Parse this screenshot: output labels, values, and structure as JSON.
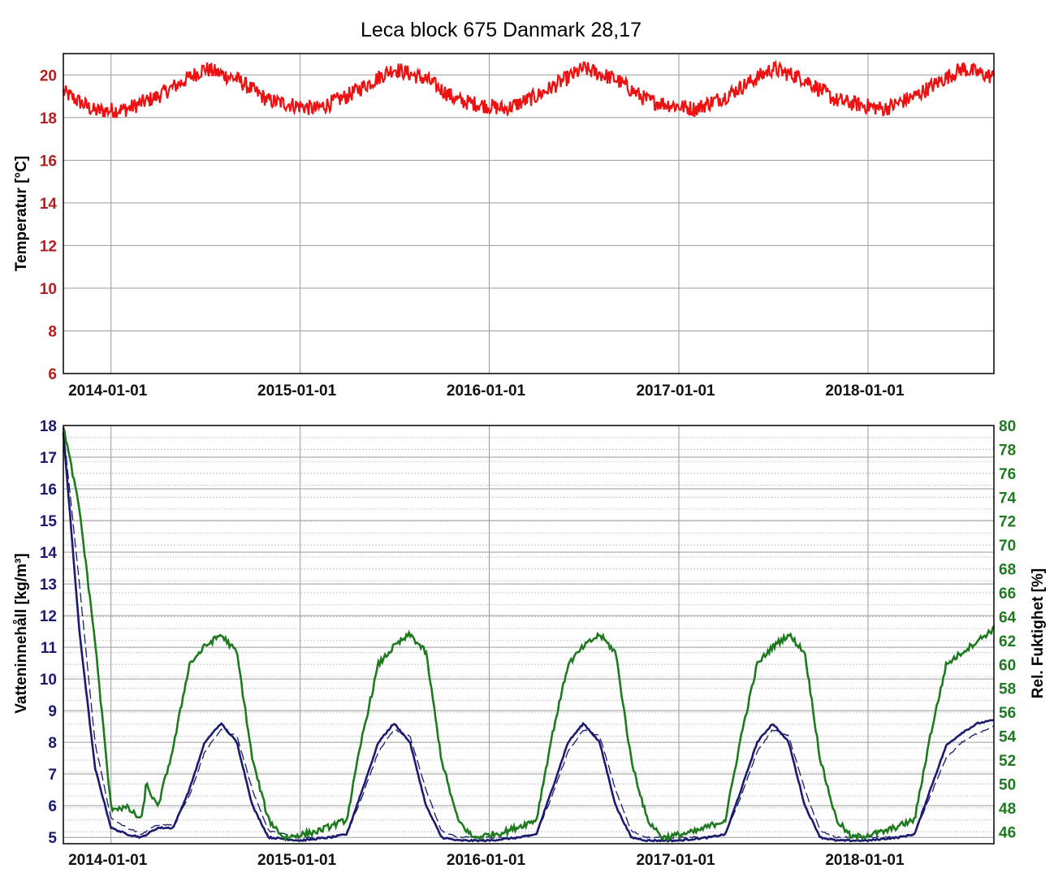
{
  "title": "Leca block 675 Danmark 28,17",
  "colors": {
    "temperature": "#ee1111",
    "temperature_axis": "#b02020",
    "water": "#1a1a6e",
    "humidity": "#1e7a1e",
    "grid": "#9a9a9a",
    "frame": "#000000"
  },
  "chart_data": [
    {
      "type": "line",
      "ylabel": "Temperatur [°C]",
      "ylim": [
        6,
        21
      ],
      "yticks": [
        6,
        8,
        10,
        12,
        14,
        16,
        18,
        20
      ],
      "xlim": [
        "2013-10-01",
        "2018-09-01"
      ],
      "xticks": [
        "2014-01-01",
        "2015-01-01",
        "2016-01-01",
        "2017-01-01",
        "2018-01-01"
      ],
      "grid": true,
      "series": [
        {
          "color": "#ee1111",
          "x": [
            "2013-10-01",
            "2013-12-01",
            "2014-02-01",
            "2014-04-01",
            "2014-07-01",
            "2014-09-01",
            "2014-11-01",
            "2015-02-01",
            "2015-04-01",
            "2015-07-01",
            "2015-09-01",
            "2015-11-01",
            "2016-02-01",
            "2016-04-01",
            "2016-07-01",
            "2016-09-01",
            "2016-11-01",
            "2017-02-01",
            "2017-04-01",
            "2017-07-01",
            "2017-09-01",
            "2017-11-01",
            "2018-02-01",
            "2018-04-01",
            "2018-07-01",
            "2018-09-01"
          ],
          "y": [
            19.2,
            18.3,
            18.4,
            19.0,
            20.3,
            19.8,
            18.8,
            18.4,
            19.0,
            20.3,
            19.8,
            18.8,
            18.4,
            19.0,
            20.3,
            19.8,
            18.8,
            18.4,
            19.0,
            20.3,
            19.8,
            18.8,
            18.4,
            19.0,
            20.3,
            19.9
          ]
        }
      ]
    },
    {
      "type": "line",
      "ylabel": "Vatteninnehåll [kg/m³]",
      "ylim": [
        4.8,
        18
      ],
      "yticks": [
        5,
        6,
        7,
        8,
        9,
        10,
        11,
        12,
        13,
        14,
        15,
        16,
        17,
        18
      ],
      "y2label": "Rel. Fuktighet [%]",
      "y2lim": [
        45,
        80
      ],
      "y2ticks": [
        46,
        48,
        50,
        52,
        54,
        56,
        58,
        60,
        62,
        64,
        66,
        68,
        70,
        72,
        74,
        76,
        78,
        80
      ],
      "xlim": [
        "2013-10-01",
        "2018-09-01"
      ],
      "xticks": [
        "2014-01-01",
        "2015-01-01",
        "2016-01-01",
        "2017-01-01",
        "2018-01-01"
      ],
      "grid": true,
      "series": [
        {
          "axis": "left",
          "style": "solid",
          "color": "#1a1a6e",
          "x": [
            "2013-10-01",
            "2013-11-01",
            "2013-12-01",
            "2014-01-01",
            "2014-02-01",
            "2014-03-01",
            "2014-04-01",
            "2014-05-01",
            "2014-06-01",
            "2014-07-01",
            "2014-08-01",
            "2014-09-01",
            "2014-10-01",
            "2014-11-01",
            "2015-01-01",
            "2015-03-01",
            "2015-04-01",
            "2015-05-01",
            "2015-06-01",
            "2015-07-01",
            "2015-08-01",
            "2015-09-01",
            "2015-10-01",
            "2015-11-01",
            "2016-01-01",
            "2016-03-01",
            "2016-04-01",
            "2016-05-01",
            "2016-06-01",
            "2016-07-01",
            "2016-08-01",
            "2016-09-01",
            "2016-10-01",
            "2016-11-01",
            "2017-01-01",
            "2017-03-01",
            "2017-04-01",
            "2017-05-01",
            "2017-06-01",
            "2017-07-01",
            "2017-08-01",
            "2017-09-01",
            "2017-10-01",
            "2017-11-01",
            "2018-01-01",
            "2018-03-01",
            "2018-04-01",
            "2018-05-01",
            "2018-06-01",
            "2018-07-01",
            "2018-08-01",
            "2018-09-01"
          ],
          "y": [
            17.8,
            11.5,
            7.2,
            5.3,
            5.1,
            5.0,
            5.3,
            5.3,
            6.5,
            8.0,
            8.6,
            8.0,
            6.0,
            5.0,
            4.9,
            5.0,
            5.1,
            6.5,
            8.0,
            8.6,
            8.0,
            6.0,
            5.0,
            4.9,
            4.9,
            5.0,
            5.1,
            6.5,
            8.0,
            8.6,
            8.0,
            6.0,
            5.0,
            4.9,
            4.9,
            5.0,
            5.1,
            6.5,
            8.0,
            8.6,
            8.0,
            6.0,
            5.0,
            4.9,
            4.9,
            5.0,
            5.1,
            6.5,
            7.9,
            8.3,
            8.6,
            8.7
          ]
        },
        {
          "axis": "left",
          "style": "dashed",
          "color": "#1a1a6e",
          "x": [
            "2013-10-01",
            "2013-11-01",
            "2013-12-01",
            "2014-01-01",
            "2014-02-01",
            "2014-03-01",
            "2014-04-01",
            "2014-05-01",
            "2014-06-01",
            "2014-07-01",
            "2014-08-01",
            "2014-09-01",
            "2014-10-01",
            "2014-11-01",
            "2015-01-01",
            "2015-03-01",
            "2015-04-01",
            "2015-05-01",
            "2015-06-01",
            "2015-07-01",
            "2015-08-01",
            "2015-09-01",
            "2015-10-01",
            "2015-11-01",
            "2016-01-01",
            "2016-03-01",
            "2016-04-01",
            "2016-05-01",
            "2016-06-01",
            "2016-07-01",
            "2016-08-01",
            "2016-09-01",
            "2016-10-01",
            "2016-11-01",
            "2017-01-01",
            "2017-03-01",
            "2017-04-01",
            "2017-05-01",
            "2017-06-01",
            "2017-07-01",
            "2017-08-01",
            "2017-09-01",
            "2017-10-01",
            "2017-11-01",
            "2018-01-01",
            "2018-03-01",
            "2018-04-01",
            "2018-05-01",
            "2018-06-01",
            "2018-07-01",
            "2018-08-01",
            "2018-09-01"
          ],
          "y": [
            17.9,
            13.0,
            8.0,
            5.6,
            5.3,
            5.1,
            5.4,
            5.4,
            6.3,
            7.7,
            8.4,
            8.2,
            6.5,
            5.2,
            5.0,
            5.0,
            5.1,
            6.3,
            7.7,
            8.4,
            8.2,
            6.5,
            5.2,
            5.0,
            5.0,
            5.0,
            5.1,
            6.3,
            7.7,
            8.4,
            8.2,
            6.5,
            5.2,
            5.0,
            5.0,
            5.0,
            5.1,
            6.3,
            7.7,
            8.4,
            8.2,
            6.5,
            5.2,
            5.0,
            5.0,
            5.0,
            5.1,
            6.3,
            7.5,
            8.0,
            8.3,
            8.5
          ]
        },
        {
          "axis": "right",
          "style": "solid",
          "color": "#1e7a1e",
          "x": [
            "2013-10-01",
            "2013-11-01",
            "2013-12-01",
            "2014-01-01",
            "2014-02-01",
            "2014-03-01",
            "2014-03-10",
            "2014-04-01",
            "2014-05-01",
            "2014-06-01",
            "2014-07-01",
            "2014-08-01",
            "2014-09-01",
            "2014-10-01",
            "2014-11-01",
            "2014-12-01",
            "2015-02-01",
            "2015-04-01",
            "2015-05-01",
            "2015-06-01",
            "2015-07-01",
            "2015-08-01",
            "2015-09-01",
            "2015-10-01",
            "2015-11-01",
            "2015-12-01",
            "2016-02-01",
            "2016-04-01",
            "2016-05-01",
            "2016-06-01",
            "2016-07-01",
            "2016-08-01",
            "2016-09-01",
            "2016-10-01",
            "2016-11-01",
            "2016-12-01",
            "2017-02-01",
            "2017-04-01",
            "2017-05-01",
            "2017-06-01",
            "2017-07-01",
            "2017-08-01",
            "2017-09-01",
            "2017-10-01",
            "2017-11-01",
            "2017-12-01",
            "2018-02-01",
            "2018-04-01",
            "2018-05-01",
            "2018-06-01",
            "2018-07-01",
            "2018-08-01",
            "2018-09-01"
          ],
          "y": [
            80,
            73,
            62,
            48,
            48,
            47,
            50,
            48,
            53,
            60,
            61.5,
            62.5,
            61,
            52,
            47,
            45.5,
            46,
            47,
            54,
            60,
            61.5,
            62.5,
            61,
            52,
            47,
            45.5,
            46,
            47,
            54,
            60,
            61.5,
            62.5,
            61,
            52,
            47,
            45.5,
            46,
            47,
            54,
            60,
            61.5,
            62.5,
            61,
            52,
            47,
            45.5,
            46,
            47,
            54,
            60,
            61,
            62,
            63
          ]
        }
      ]
    }
  ]
}
